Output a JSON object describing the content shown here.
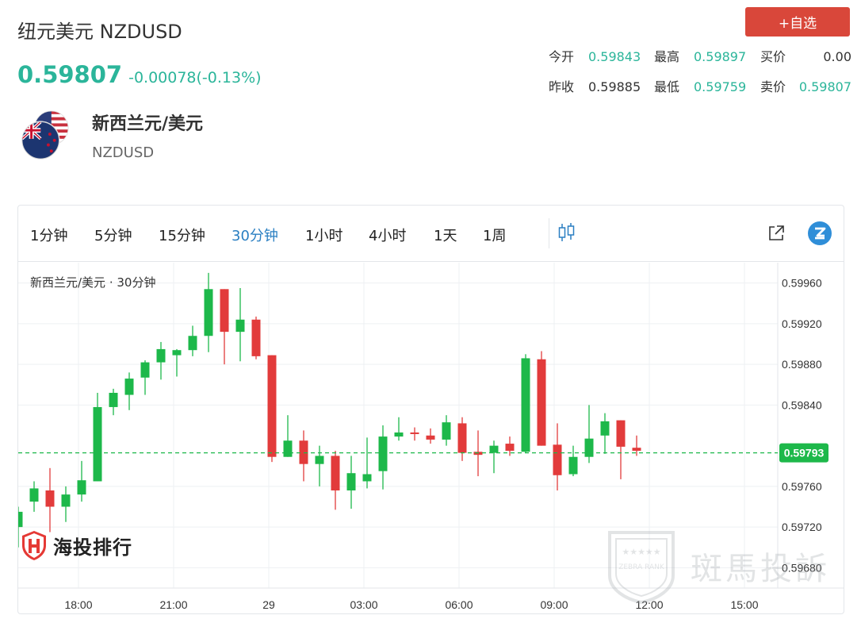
{
  "header": {
    "title": "纽元美元 NZDUSD",
    "price": "0.59807",
    "change": "-0.00078(-0.13%)",
    "add_button": "+自选"
  },
  "quote": {
    "row1": [
      {
        "label": "今开",
        "value": "0.59843"
      },
      {
        "label": "最高",
        "value": "0.59897"
      },
      {
        "label": "买价",
        "value": "0.00"
      }
    ],
    "row2": [
      {
        "label": "昨收",
        "value": "0.59885"
      },
      {
        "label": "最低",
        "value": "0.59759"
      },
      {
        "label": "卖价",
        "value": "0.59807"
      }
    ]
  },
  "pair": {
    "name": "新西兰元/美元",
    "code": "NZDUSD",
    "flag_icons": [
      "us-flag-icon",
      "nz-flag-icon"
    ]
  },
  "toolbar": {
    "timeframes": [
      "1分钟",
      "5分钟",
      "15分钟",
      "30分钟",
      "1小时",
      "4小时",
      "1天",
      "1周"
    ],
    "active_timeframe": "30分钟",
    "icons": [
      "candlestick-type-icon",
      "external-link-icon",
      "zebra-logo-icon"
    ]
  },
  "colors": {
    "up": "#1db84a",
    "down": "#e23b3b",
    "accent": "#2a7fc2",
    "price_green": "#2bb59a",
    "button_red": "#d9473a"
  },
  "watermarks": {
    "left_logo_text": "海投排行",
    "right_logo_text": "斑馬投訴",
    "right_badge_text": "ZEBRA RANK"
  },
  "chart_data": {
    "type": "candlestick",
    "title": "新西兰元/美元 · 30分钟",
    "y_ticks": [
      "0.59960",
      "0.59920",
      "0.59880",
      "0.59840",
      "0.59760",
      "0.59720",
      "0.59680"
    ],
    "ylim": [
      0.5966,
      0.5998
    ],
    "x_ticks": [
      "18:00",
      "21:00",
      "29",
      "03:00",
      "06:00",
      "09:00",
      "12:00",
      "15:00"
    ],
    "current_price": "0.59793",
    "current_value": 0.59793,
    "grid": true,
    "candles": [
      {
        "o": 0.5972,
        "h": 0.5974,
        "l": 0.597,
        "c": 0.59735
      },
      {
        "o": 0.59745,
        "h": 0.59765,
        "l": 0.59735,
        "c": 0.59758
      },
      {
        "o": 0.59756,
        "h": 0.59778,
        "l": 0.59715,
        "c": 0.5974
      },
      {
        "o": 0.5974,
        "h": 0.5976,
        "l": 0.59725,
        "c": 0.59752
      },
      {
        "o": 0.59752,
        "h": 0.59785,
        "l": 0.59745,
        "c": 0.59766
      },
      {
        "o": 0.59765,
        "h": 0.59852,
        "l": 0.59765,
        "c": 0.59838
      },
      {
        "o": 0.59838,
        "h": 0.59856,
        "l": 0.5983,
        "c": 0.59852
      },
      {
        "o": 0.5985,
        "h": 0.59872,
        "l": 0.59835,
        "c": 0.59866
      },
      {
        "o": 0.59867,
        "h": 0.59884,
        "l": 0.5985,
        "c": 0.59882
      },
      {
        "o": 0.59882,
        "h": 0.59902,
        "l": 0.59865,
        "c": 0.59895
      },
      {
        "o": 0.59889,
        "h": 0.59895,
        "l": 0.59868,
        "c": 0.59894
      },
      {
        "o": 0.59894,
        "h": 0.59918,
        "l": 0.59888,
        "c": 0.59908
      },
      {
        "o": 0.59908,
        "h": 0.5997,
        "l": 0.59892,
        "c": 0.59954
      },
      {
        "o": 0.59954,
        "h": 0.59954,
        "l": 0.5988,
        "c": 0.59912
      },
      {
        "o": 0.59912,
        "h": 0.59955,
        "l": 0.59883,
        "c": 0.59924
      },
      {
        "o": 0.59924,
        "h": 0.59927,
        "l": 0.59885,
        "c": 0.59888
      },
      {
        "o": 0.59889,
        "h": 0.59889,
        "l": 0.59784,
        "c": 0.59789
      },
      {
        "o": 0.59789,
        "h": 0.5983,
        "l": 0.59789,
        "c": 0.59805
      },
      {
        "o": 0.59805,
        "h": 0.59815,
        "l": 0.59765,
        "c": 0.59782
      },
      {
        "o": 0.59782,
        "h": 0.598,
        "l": 0.5976,
        "c": 0.5979
      },
      {
        "o": 0.5979,
        "h": 0.59795,
        "l": 0.59737,
        "c": 0.59756
      },
      {
        "o": 0.59756,
        "h": 0.5979,
        "l": 0.59738,
        "c": 0.59773
      },
      {
        "o": 0.59765,
        "h": 0.59808,
        "l": 0.59758,
        "c": 0.59772
      },
      {
        "o": 0.59775,
        "h": 0.5982,
        "l": 0.59757,
        "c": 0.59809
      },
      {
        "o": 0.59809,
        "h": 0.59828,
        "l": 0.59805,
        "c": 0.59813
      },
      {
        "o": 0.59813,
        "h": 0.59818,
        "l": 0.59805,
        "c": 0.59812
      },
      {
        "o": 0.5981,
        "h": 0.59817,
        "l": 0.59802,
        "c": 0.59806
      },
      {
        "o": 0.59806,
        "h": 0.5983,
        "l": 0.598,
        "c": 0.59823
      },
      {
        "o": 0.59822,
        "h": 0.59828,
        "l": 0.59785,
        "c": 0.59793
      },
      {
        "o": 0.59794,
        "h": 0.59815,
        "l": 0.5977,
        "c": 0.59791
      },
      {
        "o": 0.59793,
        "h": 0.59805,
        "l": 0.59773,
        "c": 0.598
      },
      {
        "o": 0.59802,
        "h": 0.59809,
        "l": 0.5979,
        "c": 0.59795
      },
      {
        "o": 0.59794,
        "h": 0.5989,
        "l": 0.59793,
        "c": 0.59886
      },
      {
        "o": 0.59885,
        "h": 0.59893,
        "l": 0.598,
        "c": 0.598
      },
      {
        "o": 0.59801,
        "h": 0.59822,
        "l": 0.59756,
        "c": 0.59771
      },
      {
        "o": 0.59772,
        "h": 0.598,
        "l": 0.5977,
        "c": 0.59789
      },
      {
        "o": 0.59789,
        "h": 0.5984,
        "l": 0.59783,
        "c": 0.59807
      },
      {
        "o": 0.5981,
        "h": 0.59832,
        "l": 0.59792,
        "c": 0.59824
      },
      {
        "o": 0.59825,
        "h": 0.59825,
        "l": 0.59767,
        "c": 0.59799
      },
      {
        "o": 0.59798,
        "h": 0.5981,
        "l": 0.5979,
        "c": 0.59795
      }
    ]
  }
}
